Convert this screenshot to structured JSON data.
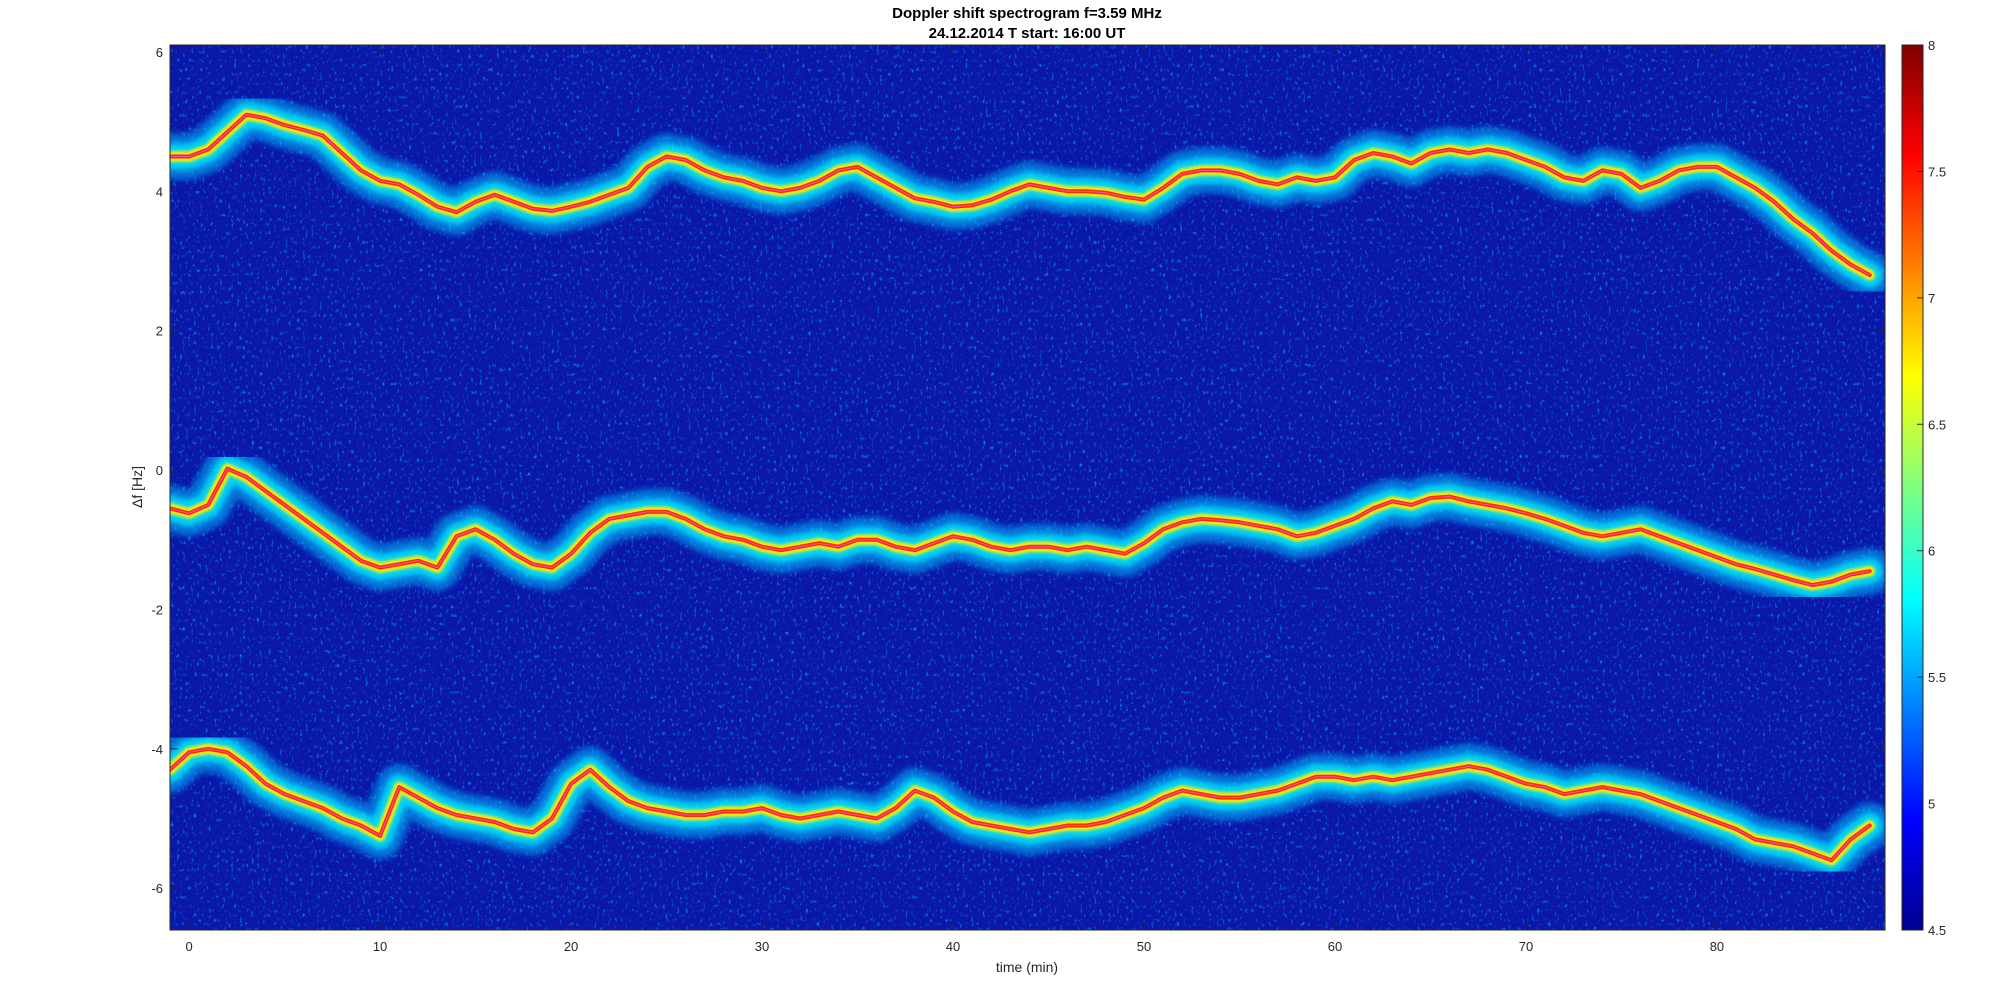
{
  "chart_data": {
    "type": "heatmap",
    "title": "Doppler shift spectrogram f=3.59 MHz",
    "subtitle": "24.12.2014   T start: 16:00 UT",
    "xlabel": "time (min)",
    "ylabel": "Δf [Hz]",
    "xlim": [
      -1,
      88.8
    ],
    "ylim": [
      -6.6,
      6.1
    ],
    "xticks": [
      "0",
      "10",
      "20",
      "30",
      "40",
      "50",
      "60",
      "70",
      "80"
    ],
    "yticks": [
      "-6",
      "-4",
      "-2",
      "0",
      "2",
      "4",
      "6"
    ],
    "colorbar": {
      "colormap": "jet",
      "clim": [
        4.5,
        8
      ],
      "ticks": [
        "4.5",
        "5",
        "5.5",
        "6",
        "6.5",
        "7",
        "7.5",
        "8"
      ]
    },
    "grid": false,
    "series": [
      {
        "x": [
          -1,
          0,
          1,
          2,
          3,
          4,
          5,
          6,
          7,
          8,
          9,
          10,
          11,
          12,
          13,
          14,
          15,
          16,
          17,
          18,
          19,
          20,
          21,
          22,
          23,
          24,
          25,
          26,
          27,
          28,
          29,
          30,
          31,
          32,
          33,
          34,
          35,
          36,
          37,
          38,
          39,
          40,
          41,
          42,
          43,
          44,
          45,
          46,
          47,
          48,
          49,
          50,
          51,
          52,
          53,
          54,
          55,
          56,
          57,
          58,
          59,
          60,
          61,
          62,
          63,
          64,
          65,
          66,
          67,
          68,
          69,
          70,
          71,
          72,
          73,
          74,
          75,
          76,
          77,
          78,
          79,
          80,
          81,
          82,
          83,
          84,
          85,
          86,
          87,
          88
        ],
        "values": [
          4.5,
          4.5,
          4.6,
          4.85,
          5.1,
          5.05,
          4.95,
          4.88,
          4.8,
          4.55,
          4.3,
          4.15,
          4.1,
          3.95,
          3.78,
          3.7,
          3.85,
          3.95,
          3.85,
          3.75,
          3.72,
          3.78,
          3.85,
          3.95,
          4.05,
          4.35,
          4.5,
          4.45,
          4.3,
          4.2,
          4.15,
          4.05,
          4.0,
          4.05,
          4.15,
          4.3,
          4.35,
          4.2,
          4.05,
          3.9,
          3.85,
          3.78,
          3.8,
          3.88,
          4.0,
          4.1,
          4.05,
          4.0,
          4.0,
          3.98,
          3.92,
          3.88,
          4.05,
          4.25,
          4.3,
          4.3,
          4.25,
          4.15,
          4.1,
          4.2,
          4.15,
          4.2,
          4.45,
          4.55,
          4.5,
          4.4,
          4.55,
          4.6,
          4.55,
          4.6,
          4.55,
          4.45,
          4.35,
          4.2,
          4.15,
          4.3,
          4.25,
          4.05,
          4.15,
          4.3,
          4.35,
          4.35,
          4.2,
          4.05,
          3.85,
          3.6,
          3.4,
          3.15,
          2.95,
          2.8
        ]
      },
      {
        "x": [
          -1,
          0,
          1,
          2,
          3,
          4,
          5,
          6,
          7,
          8,
          9,
          10,
          11,
          12,
          13,
          14,
          15,
          16,
          17,
          18,
          19,
          20,
          21,
          22,
          23,
          24,
          25,
          26,
          27,
          28,
          29,
          30,
          31,
          32,
          33,
          34,
          35,
          36,
          37,
          38,
          39,
          40,
          41,
          42,
          43,
          44,
          45,
          46,
          47,
          48,
          49,
          50,
          51,
          52,
          53,
          54,
          55,
          56,
          57,
          58,
          59,
          60,
          61,
          62,
          63,
          64,
          65,
          66,
          67,
          68,
          69,
          70,
          71,
          72,
          73,
          74,
          75,
          76,
          77,
          78,
          79,
          80,
          81,
          82,
          83,
          84,
          85,
          86,
          87,
          88
        ],
        "values": [
          -0.55,
          -0.62,
          -0.5,
          0.02,
          -0.1,
          -0.3,
          -0.5,
          -0.7,
          -0.9,
          -1.1,
          -1.3,
          -1.4,
          -1.35,
          -1.3,
          -1.4,
          -0.95,
          -0.85,
          -1.0,
          -1.2,
          -1.35,
          -1.4,
          -1.2,
          -0.9,
          -0.7,
          -0.65,
          -0.6,
          -0.6,
          -0.7,
          -0.85,
          -0.95,
          -1.0,
          -1.1,
          -1.15,
          -1.1,
          -1.05,
          -1.1,
          -1.0,
          -1.0,
          -1.1,
          -1.15,
          -1.05,
          -0.95,
          -1.0,
          -1.1,
          -1.15,
          -1.1,
          -1.1,
          -1.15,
          -1.1,
          -1.15,
          -1.2,
          -1.05,
          -0.85,
          -0.75,
          -0.7,
          -0.72,
          -0.75,
          -0.8,
          -0.85,
          -0.95,
          -0.9,
          -0.8,
          -0.7,
          -0.55,
          -0.45,
          -0.5,
          -0.4,
          -0.38,
          -0.45,
          -0.5,
          -0.55,
          -0.62,
          -0.7,
          -0.8,
          -0.9,
          -0.95,
          -0.9,
          -0.85,
          -0.95,
          -1.05,
          -1.15,
          -1.25,
          -1.35,
          -1.42,
          -1.5,
          -1.58,
          -1.65,
          -1.6,
          -1.5,
          -1.45
        ]
      },
      {
        "x": [
          -1,
          0,
          1,
          2,
          3,
          4,
          5,
          6,
          7,
          8,
          9,
          10,
          11,
          12,
          13,
          14,
          15,
          16,
          17,
          18,
          19,
          20,
          21,
          22,
          23,
          24,
          25,
          26,
          27,
          28,
          29,
          30,
          31,
          32,
          33,
          34,
          35,
          36,
          37,
          38,
          39,
          40,
          41,
          42,
          43,
          44,
          45,
          46,
          47,
          48,
          49,
          50,
          51,
          52,
          53,
          54,
          55,
          56,
          57,
          58,
          59,
          60,
          61,
          62,
          63,
          64,
          65,
          66,
          67,
          68,
          69,
          70,
          71,
          72,
          73,
          74,
          75,
          76,
          77,
          78,
          79,
          80,
          81,
          82,
          83,
          84,
          85,
          86,
          87,
          88
        ],
        "values": [
          -4.3,
          -4.05,
          -4.0,
          -4.05,
          -4.25,
          -4.5,
          -4.65,
          -4.75,
          -4.85,
          -5.0,
          -5.1,
          -5.25,
          -4.55,
          -4.7,
          -4.85,
          -4.95,
          -5.0,
          -5.05,
          -5.15,
          -5.2,
          -5.0,
          -4.5,
          -4.3,
          -4.55,
          -4.75,
          -4.85,
          -4.9,
          -4.95,
          -4.95,
          -4.9,
          -4.9,
          -4.85,
          -4.95,
          -5.0,
          -4.95,
          -4.9,
          -4.95,
          -5.0,
          -4.85,
          -4.6,
          -4.7,
          -4.9,
          -5.05,
          -5.1,
          -5.15,
          -5.2,
          -5.15,
          -5.1,
          -5.1,
          -5.05,
          -4.95,
          -4.85,
          -4.7,
          -4.6,
          -4.65,
          -4.7,
          -4.7,
          -4.65,
          -4.6,
          -4.5,
          -4.4,
          -4.4,
          -4.45,
          -4.4,
          -4.45,
          -4.4,
          -4.35,
          -4.3,
          -4.25,
          -4.3,
          -4.4,
          -4.5,
          -4.55,
          -4.65,
          -4.6,
          -4.55,
          -4.6,
          -4.65,
          -4.75,
          -4.85,
          -4.95,
          -5.05,
          -5.15,
          -5.3,
          -5.35,
          -5.4,
          -5.5,
          -5.6,
          -5.3,
          -5.1
        ]
      }
    ]
  }
}
